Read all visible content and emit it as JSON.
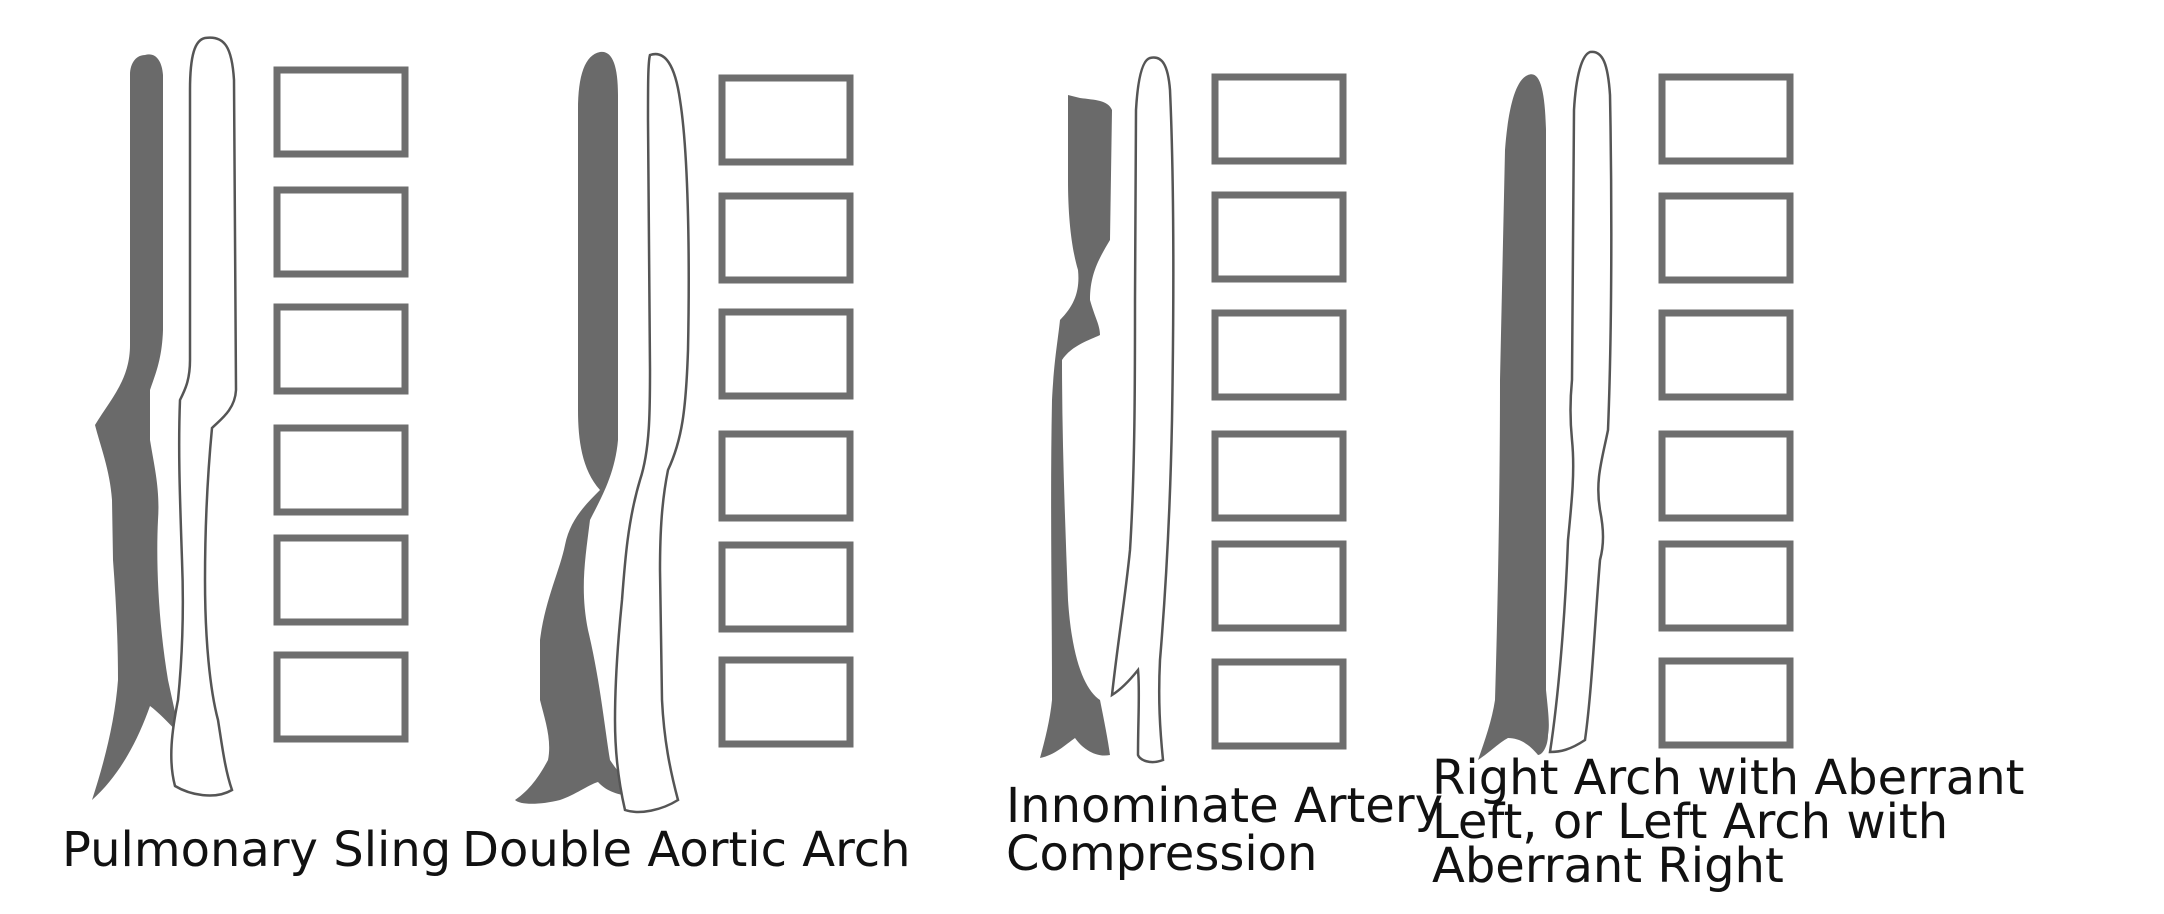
{
  "panels": [
    {
      "label_lines": [
        "Pulmonary Sling"
      ]
    },
    {
      "label_lines": [
        "Double Aortic Arch"
      ]
    },
    {
      "label_lines": [
        "Innominate Artery",
        "Compression"
      ]
    },
    {
      "label_lines": [
        "Right Arch with Aberrant",
        "Left, or Left Arch with",
        "Aberrant Right"
      ]
    }
  ],
  "colors": {
    "trachea": "#6a6a6a",
    "esophagus_outline": "#555555",
    "vertebra_outline": "#6e6e6e",
    "background": "#ffffff"
  }
}
